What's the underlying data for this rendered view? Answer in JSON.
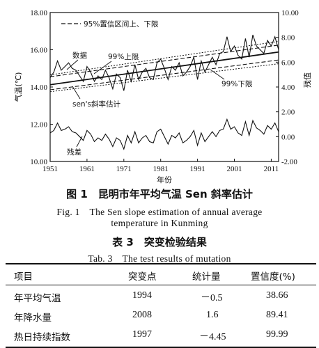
{
  "figure": {
    "caption_cn": "图 1　昆明市年平均气温 Sen 斜率估计",
    "caption_en_line1": "Fig. 1　The Sen slope estimation of annual average",
    "caption_en_line2": "temperature in Kunming"
  },
  "chart_data": {
    "type": "line",
    "ylabel": "气温(℃)",
    "y2label": "残值",
    "xlabel": "年份",
    "xlim": [
      1951,
      2013
    ],
    "ylim": [
      10,
      18
    ],
    "y2lim": [
      -2,
      10
    ],
    "x_ticks": [
      "1951",
      "1961",
      "1971",
      "1981",
      "1991",
      "2001",
      "2011"
    ],
    "y_ticks": [
      "10.00",
      "12.00",
      "14.00",
      "16.00",
      "18.00"
    ],
    "y2_ticks": [
      "-2.00",
      "0.00",
      "2.00",
      "4.00",
      "6.00",
      "8.00",
      "10.00"
    ],
    "legend": "95%置信区间上、下限",
    "annotations": [
      "数据",
      "99%上限",
      "99%下限",
      "sen's斜率估计",
      "残差"
    ],
    "series": [
      {
        "role": "data",
        "x_start": 1951,
        "values": [
          14.5,
          14.8,
          15.4,
          14.9,
          15.1,
          15.3,
          15.0,
          14.9,
          14.6,
          14.3,
          15.1,
          14.8,
          14.3,
          14.6,
          14.4,
          14.9,
          14.5,
          13.9,
          14.7,
          14.5,
          13.8,
          14.9,
          14.3,
          15.2,
          14.4,
          14.8,
          15.0,
          14.5,
          14.4,
          15.3,
          15.5,
          15.0,
          14.4,
          15.1,
          14.9,
          15.3,
          14.6,
          14.8,
          15.1,
          15.6,
          14.4,
          15.4,
          14.8,
          15.2,
          15.6,
          15.2,
          15.8,
          15.9,
          16.7,
          15.9,
          16.2,
          15.7,
          15.5,
          16.6,
          15.6,
          16.8,
          16.2,
          16.0,
          15.8,
          16.5,
          16.2,
          16.7,
          16.0
        ]
      },
      {
        "role": "residual",
        "x_start": 1951,
        "values": [
          0.3,
          0.5,
          1.1,
          0.5,
          0.6,
          0.8,
          0.4,
          0.3,
          0.0,
          -0.3,
          0.5,
          0.2,
          -0.4,
          -0.1,
          -0.3,
          0.2,
          -0.2,
          -0.8,
          -0.1,
          -0.3,
          -1.0,
          0.1,
          -0.5,
          0.4,
          -0.5,
          -0.1,
          0.1,
          -0.4,
          -0.5,
          0.4,
          0.6,
          0.0,
          -0.6,
          0.1,
          -0.1,
          0.3,
          -0.5,
          -0.3,
          0.0,
          0.5,
          -0.7,
          0.3,
          -0.4,
          0.0,
          0.4,
          0.0,
          0.5,
          0.6,
          1.4,
          0.6,
          0.8,
          0.3,
          0.1,
          1.2,
          0.1,
          1.3,
          0.7,
          0.5,
          0.2,
          0.9,
          0.6,
          1.1,
          0.4
        ]
      },
      {
        "role": "sen",
        "points": [
          [
            1951,
            14.12
          ],
          [
            2013,
            15.88
          ]
        ]
      },
      {
        "role": "ci95_upper",
        "points": [
          [
            1951,
            14.55
          ],
          [
            2013,
            16.25
          ]
        ]
      },
      {
        "role": "ci95_lower",
        "points": [
          [
            1951,
            13.85
          ],
          [
            2013,
            15.45
          ]
        ]
      },
      {
        "role": "ci99_upper",
        "points": [
          [
            1951,
            14.65
          ],
          [
            2013,
            16.45
          ]
        ]
      },
      {
        "role": "ci99_lower",
        "points": [
          [
            1951,
            13.75
          ],
          [
            2013,
            15.25
          ]
        ]
      }
    ]
  },
  "table": {
    "caption_cn": "表 3　突变检验结果",
    "caption_en": "Tab. 3　The test results of mutation",
    "headers": [
      "项目",
      "突变点",
      "统计量",
      "置信度(%)"
    ],
    "rows": [
      [
        "年平均气温",
        "1994",
        "－0.5",
        "38.66"
      ],
      [
        "年降水量",
        "2008",
        "1.6",
        "89.41"
      ],
      [
        "热日持续指数",
        "1997",
        "－4.45",
        "99.99"
      ]
    ]
  }
}
